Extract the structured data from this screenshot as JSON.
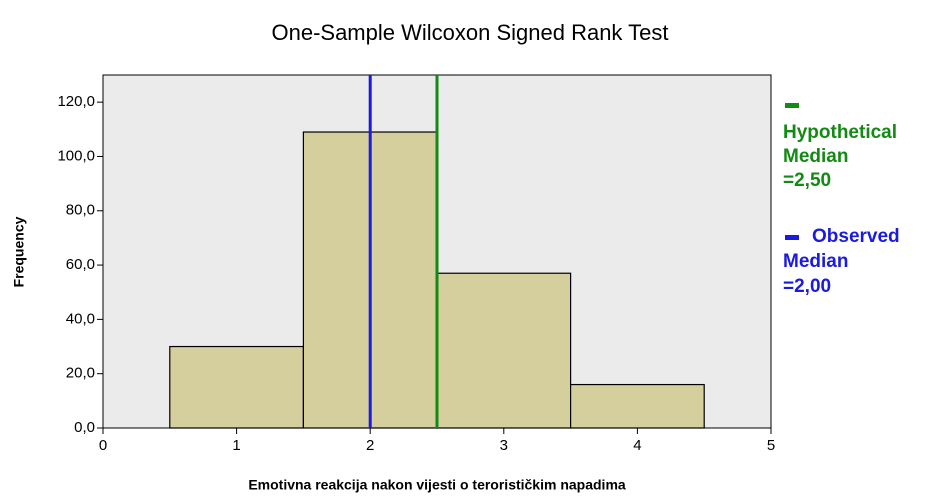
{
  "chart_data": {
    "type": "histogram",
    "title": "One-Sample Wilcoxon Signed Rank Test",
    "x_label": "Emotivna reakcija nakon vijesti o terorističkim napadima",
    "y_label": "Frequency",
    "bins": [
      0.5,
      1.5,
      2.5,
      3.5,
      4.5
    ],
    "values": [
      30,
      109,
      57,
      16
    ],
    "color": "#d4cf9d",
    "xlim": [
      0,
      5
    ],
    "xticks": [
      0,
      1,
      2,
      3,
      4,
      5
    ],
    "ylim": [
      0,
      130
    ],
    "yticks": [
      {
        "value": 0,
        "label": "0,0"
      },
      {
        "value": 20,
        "label": "20,0"
      },
      {
        "value": 40,
        "label": "40,0"
      },
      {
        "value": 60,
        "label": "60,0"
      },
      {
        "value": 80,
        "label": "80,0"
      },
      {
        "value": 100,
        "label": "100,0"
      },
      {
        "value": 120,
        "label": "120,0"
      }
    ],
    "reference_lines": [
      {
        "label": [
          "Hypothetical",
          "Median",
          "=2,50"
        ],
        "value": 2.5,
        "color": "#138a13"
      },
      {
        "label": [
          "Observed",
          "Median",
          "=2,00"
        ],
        "value": 2.0,
        "color": "#1a1ae0"
      }
    ]
  }
}
